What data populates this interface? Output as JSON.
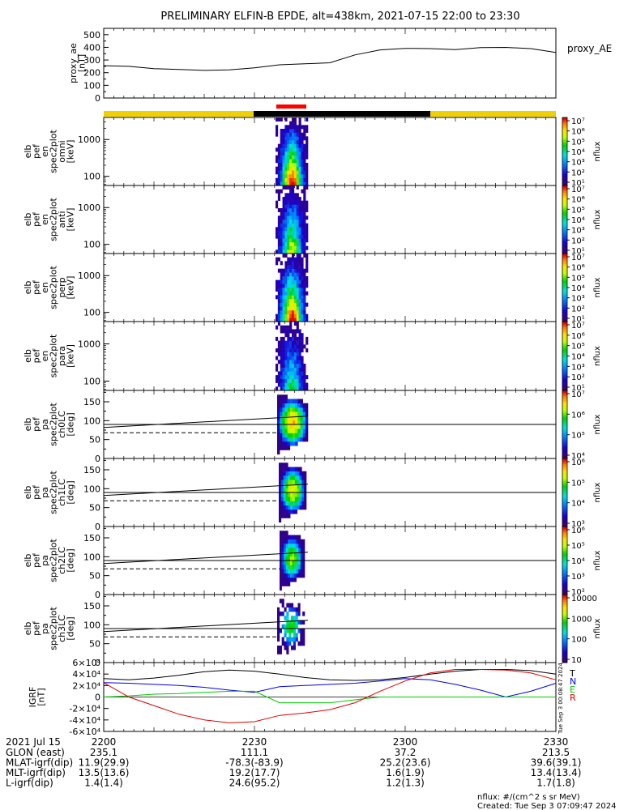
{
  "title": "PRELIMINARY ELFIN-B EPDE, alt=438km, 2021-07-15 22:00 to 23:30",
  "colors": {
    "red": "#e00000",
    "green": "#00cc00",
    "blue": "#0000ee",
    "black": "#000000",
    "status_yellow": "#f0d000",
    "status_black": "#000000",
    "status_red": "#ff0000"
  },
  "chart_data": [
    {
      "type": "line",
      "panel": "proxy_ae",
      "ylabel_lines": [
        "proxy_ae",
        "[nT]"
      ],
      "legend": "proxy_AE",
      "ylim": [
        0,
        550
      ],
      "yticks": [
        "0",
        "100",
        "200",
        "300",
        "400",
        "500"
      ],
      "x": [
        "22:00",
        "22:05",
        "22:10",
        "22:15",
        "22:20",
        "22:25",
        "22:30",
        "22:35",
        "22:40",
        "22:45",
        "22:50",
        "22:55",
        "23:00",
        "23:05",
        "23:10",
        "23:15",
        "23:20",
        "23:25",
        "23:30"
      ],
      "values": [
        255,
        250,
        232,
        225,
        218,
        222,
        238,
        262,
        270,
        278,
        340,
        380,
        392,
        390,
        382,
        398,
        400,
        390,
        360
      ]
    },
    {
      "type": "heatmap",
      "panel": "spec_omni",
      "ylabel_lines": [
        "elb",
        "pef",
        "en",
        "spec2plot",
        "omni",
        "[keV]"
      ],
      "yticks": [
        "100",
        "1000"
      ],
      "yscale": "log",
      "colorbar": {
        "label": "nflux",
        "ticks": [
          "10¹",
          "10²",
          "10³",
          "10⁴",
          "10⁵",
          "10⁶",
          "10⁷"
        ]
      }
    },
    {
      "type": "heatmap",
      "panel": "spec_anti",
      "ylabel_lines": [
        "elb",
        "pef",
        "en",
        "spec2plot",
        "anti",
        "[keV]"
      ],
      "yticks": [
        "100",
        "1000"
      ],
      "yscale": "log",
      "colorbar": {
        "label": "nflux",
        "ticks": [
          "10¹",
          "10²",
          "10³",
          "10⁴",
          "10⁵",
          "10⁶",
          "10⁷"
        ]
      }
    },
    {
      "type": "heatmap",
      "panel": "spec_perp",
      "ylabel_lines": [
        "elb",
        "pef",
        "en",
        "spec2plot",
        "perp",
        "[keV]"
      ],
      "yticks": [
        "100",
        "1000"
      ],
      "yscale": "log",
      "colorbar": {
        "label": "nflux",
        "ticks": [
          "10¹",
          "10²",
          "10³",
          "10⁴",
          "10⁵",
          "10⁶",
          "10⁷"
        ]
      }
    },
    {
      "type": "heatmap",
      "panel": "spec_para",
      "ylabel_lines": [
        "elb",
        "pef",
        "en",
        "spec2plot",
        "para",
        "[keV]"
      ],
      "yticks": [
        "100",
        "1000"
      ],
      "yscale": "log",
      "colorbar": {
        "label": "nflux",
        "ticks": [
          "10¹",
          "10²",
          "10³",
          "10⁴",
          "10⁵",
          "10⁶",
          "10⁷"
        ]
      }
    },
    {
      "type": "heatmap",
      "panel": "pa_ch0",
      "ylabel_lines": [
        "elb",
        "pef",
        "pa",
        "spec2plot",
        "ch0LC",
        "[deg]"
      ],
      "ylim": [
        0,
        180
      ],
      "yticks": [
        "0",
        "50",
        "100",
        "150"
      ],
      "colorbar": {
        "label": "nflux",
        "ticks": [
          "10⁴",
          "10⁵",
          "10⁶",
          "10⁷"
        ]
      }
    },
    {
      "type": "heatmap",
      "panel": "pa_ch1",
      "ylabel_lines": [
        "elb",
        "pef",
        "pa",
        "spec2plot",
        "ch1LC",
        "[deg]"
      ],
      "ylim": [
        0,
        180
      ],
      "yticks": [
        "0",
        "50",
        "100",
        "150"
      ],
      "colorbar": {
        "label": "nflux",
        "ticks": [
          "10³",
          "10⁴",
          "10⁵",
          "10⁶"
        ]
      }
    },
    {
      "type": "heatmap",
      "panel": "pa_ch2",
      "ylabel_lines": [
        "elb",
        "pef",
        "pa",
        "spec2plot",
        "ch2LC",
        "[deg]"
      ],
      "ylim": [
        0,
        180
      ],
      "yticks": [
        "0",
        "50",
        "100",
        "150"
      ],
      "colorbar": {
        "label": "nflux",
        "ticks": [
          "10²",
          "10³",
          "10⁴",
          "10⁵",
          "10⁶"
        ]
      }
    },
    {
      "type": "heatmap",
      "panel": "pa_ch3",
      "ylabel_lines": [
        "elb",
        "pef",
        "pa",
        "spec2plot",
        "ch3LC",
        "[deg]"
      ],
      "ylim": [
        0,
        180
      ],
      "yticks": [
        "0",
        "50",
        "100",
        "150"
      ],
      "colorbar": {
        "label": "nflux",
        "ticks": [
          "10",
          "100",
          "1000",
          "10000"
        ]
      }
    },
    {
      "type": "line",
      "panel": "igrf",
      "ylabel_lines": [
        "IGRF",
        "[nT]"
      ],
      "ylim": [
        -60000,
        60000
      ],
      "yticks": [
        "-6×10⁴",
        "-4×10⁴",
        "-2×10⁴",
        "0",
        "2×10⁴",
        "4×10⁴",
        "6×10⁴"
      ],
      "x": [
        "22:00",
        "22:05",
        "22:10",
        "22:15",
        "22:20",
        "22:25",
        "22:30",
        "22:35",
        "22:40",
        "22:45",
        "22:50",
        "22:55",
        "23:00",
        "23:05",
        "23:10",
        "23:15",
        "23:20",
        "23:25",
        "23:30"
      ],
      "series": [
        {
          "name": "T",
          "color": "#000000",
          "values": [
            32000,
            30000,
            33000,
            38000,
            44000,
            47000,
            45000,
            40000,
            34000,
            30000,
            29000,
            30000,
            34000,
            40000,
            45000,
            48000,
            48000,
            46000,
            40000
          ]
        },
        {
          "name": "N",
          "color": "#0000ee",
          "values": [
            25000,
            24000,
            22000,
            20000,
            17000,
            12000,
            8000,
            18000,
            20000,
            22000,
            24000,
            28000,
            32000,
            30000,
            22000,
            12000,
            0,
            10000,
            24000
          ]
        },
        {
          "name": "E",
          "color": "#00cc00",
          "values": [
            0,
            2000,
            5000,
            6000,
            8000,
            10000,
            10000,
            -10000,
            -10000,
            -10000,
            -5000,
            0,
            0,
            0,
            0,
            0,
            0,
            0,
            0
          ]
        },
        {
          "name": "R",
          "color": "#e00000",
          "values": [
            25000,
            0,
            -15000,
            -30000,
            -40000,
            -45000,
            -43000,
            -32000,
            -28000,
            -22000,
            -10000,
            10000,
            28000,
            42000,
            48000,
            48000,
            47000,
            42000,
            30000
          ]
        }
      ]
    }
  ],
  "axis": {
    "date_label": "2021 Jul 15",
    "time_ticks": [
      "2200",
      "2230",
      "2300",
      "2330"
    ],
    "rows": [
      {
        "label": "GLON (east)",
        "values": [
          "235.1",
          "111.1",
          "37.2",
          "213.5"
        ]
      },
      {
        "label": "MLAT-igrf(dip)",
        "values": [
          "11.9(29.9)",
          "-78.3(-83.9)",
          "25.2(23.6)",
          "39.6(39.1)"
        ]
      },
      {
        "label": "MLT-igrf(dip)",
        "values": [
          "13.5(13.6)",
          "19.2(17.7)",
          "1.6(1.9)",
          "13.4(13.4)"
        ]
      },
      {
        "label": "L-igrf(dip)",
        "values": [
          "1.4(1.4)",
          "24.6(95.2)",
          "1.2(1.3)",
          "1.7(1.8)"
        ]
      }
    ]
  },
  "footer": {
    "units": "nflux: #/(cm^2 s sr MeV)",
    "created": "Created: Tue Sep  3 07:09:47 2024"
  },
  "side_stamp": "Tue Sep  3 00:08:47 2024"
}
